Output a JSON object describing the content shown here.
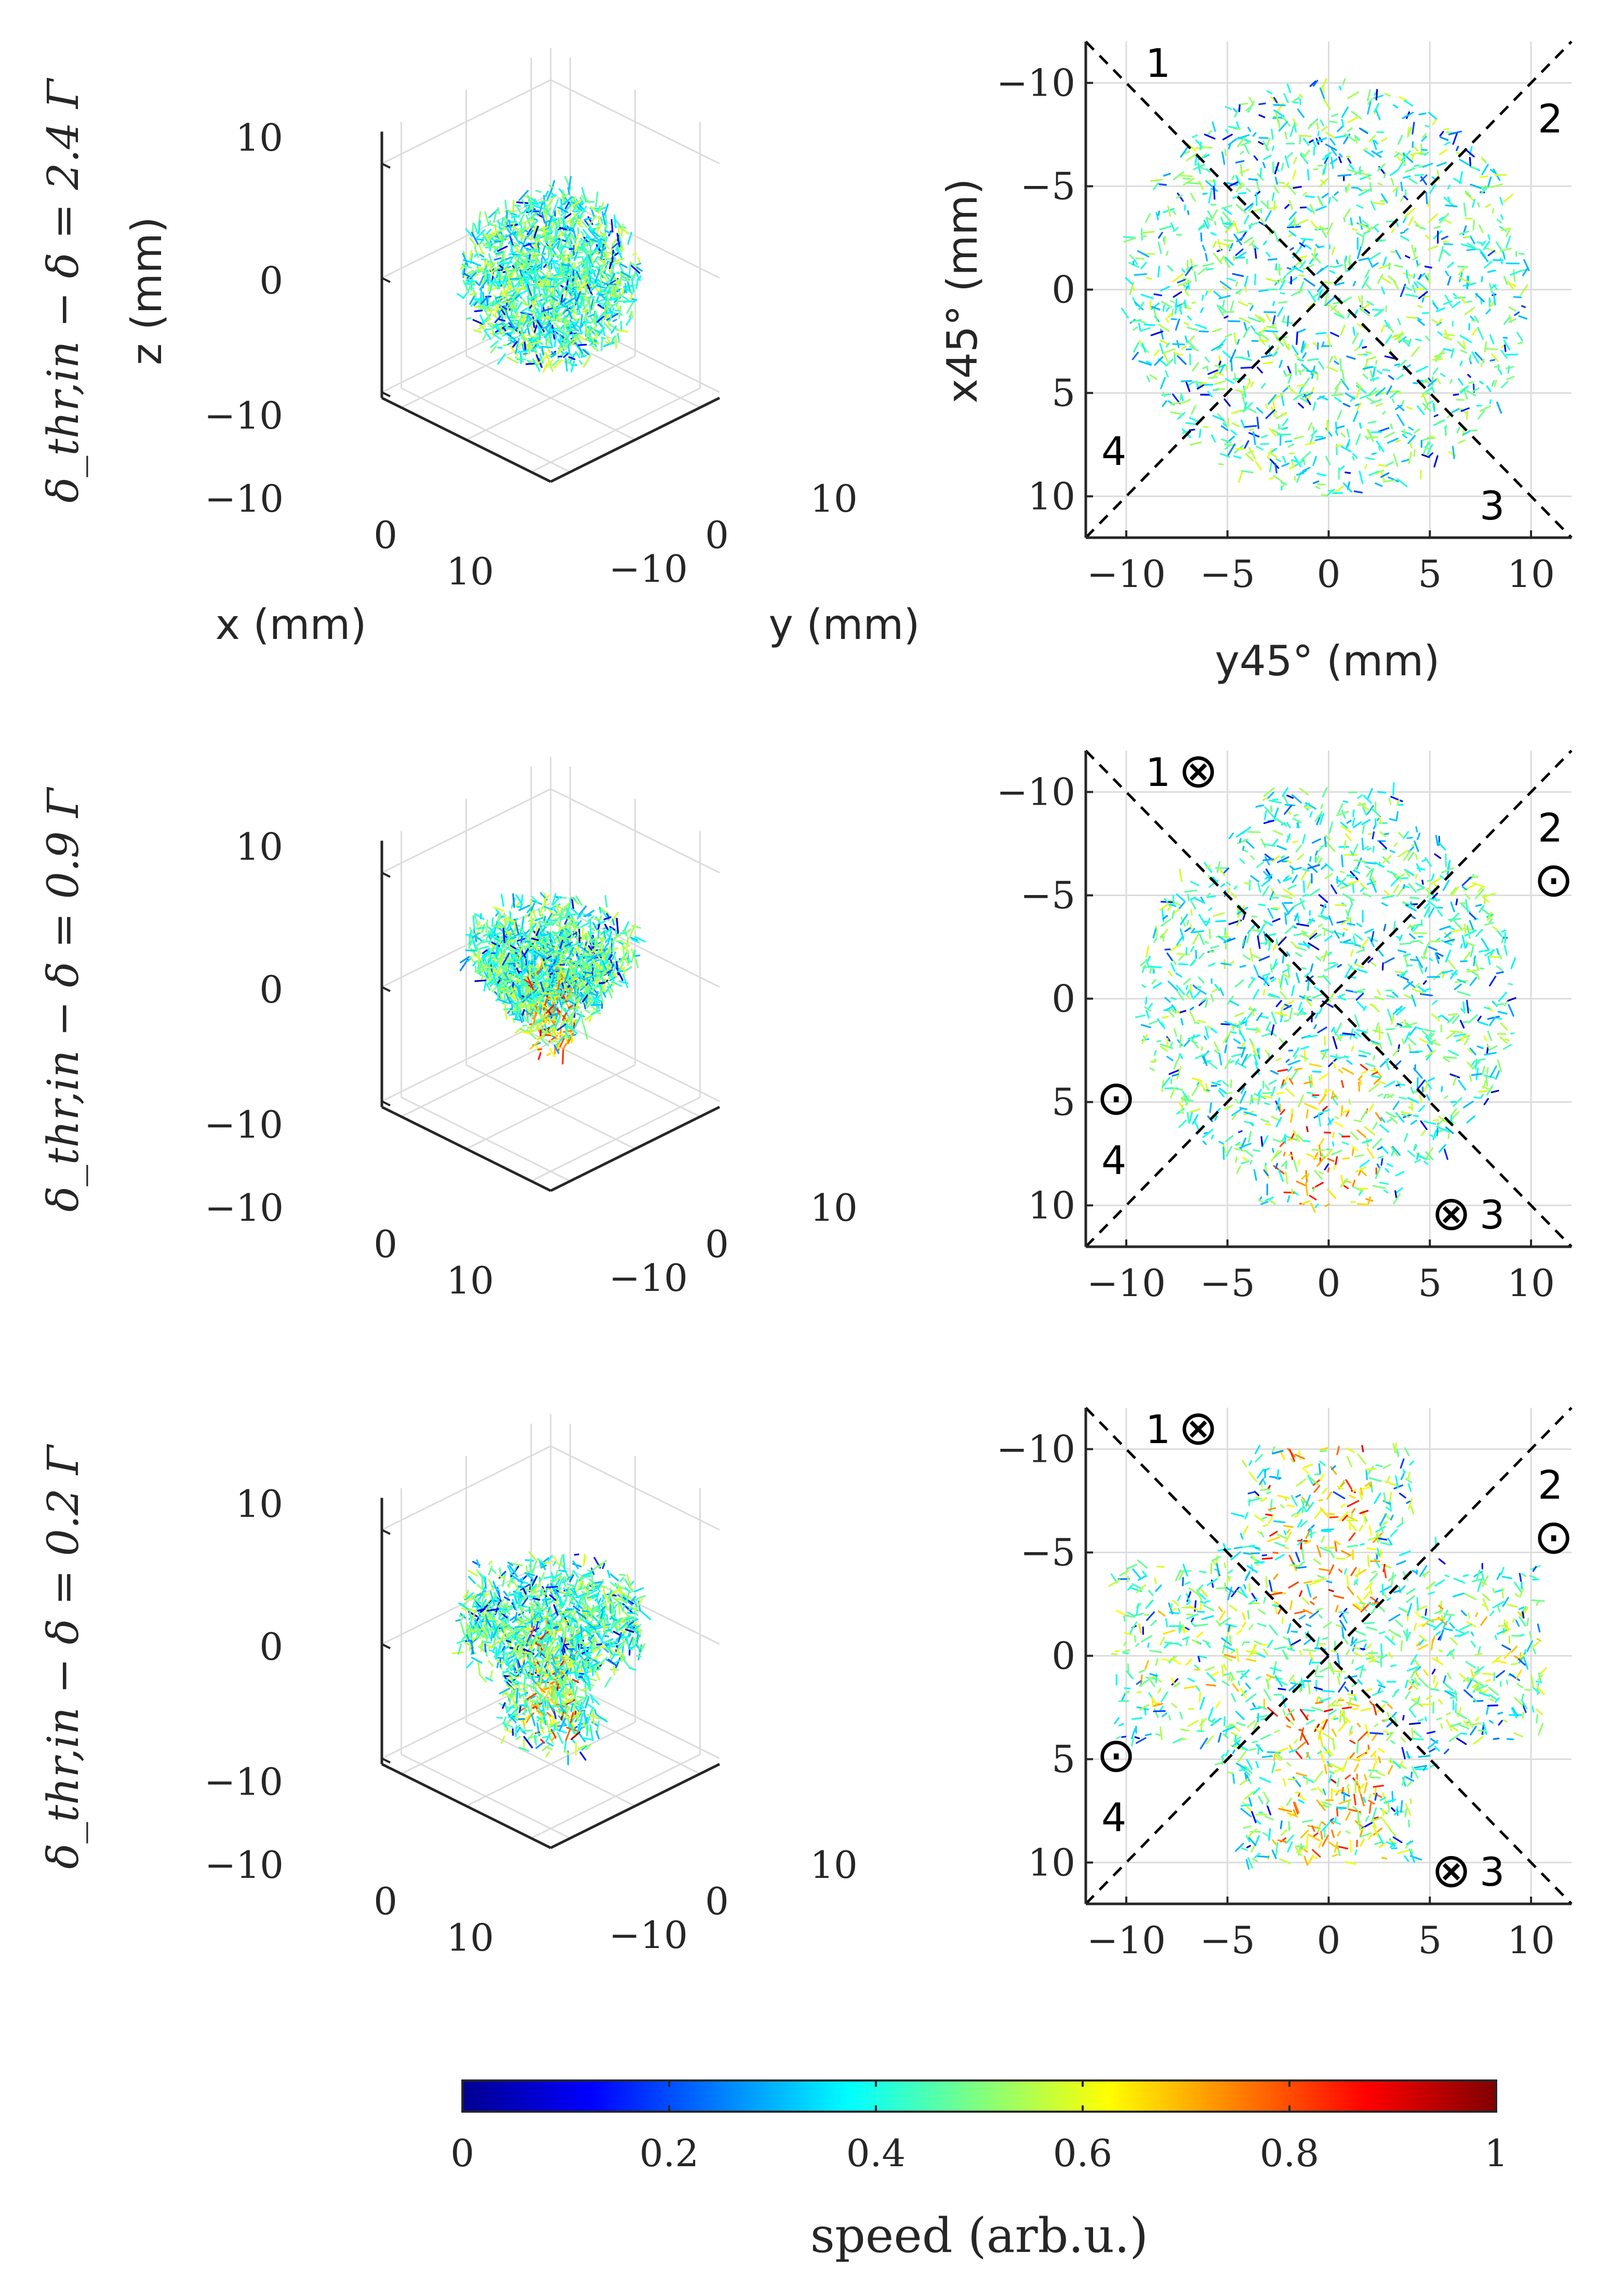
{
  "chart_data": [
    {
      "type": "scatter",
      "projection": "3d",
      "panel": "row1-left",
      "row_label": "δ_thr,in − δ = 2.4 Γ",
      "xlabel": "x (mm)",
      "ylabel": "y (mm)",
      "zlabel": "z (mm)",
      "x_ticks": [
        "−10",
        "0",
        "10"
      ],
      "y_ticks": [
        "−10",
        "0",
        "10"
      ],
      "z_ticks": [
        "10",
        "0",
        "−10"
      ],
      "xlim": [
        -13,
        13
      ],
      "ylim": [
        -13,
        13
      ],
      "zlim": [
        -12,
        12
      ],
      "shape": "ellipsoid",
      "cloud_extent_mm": 10,
      "color_by": "speed"
    },
    {
      "type": "scatter",
      "panel": "row1-right",
      "xlabel": "y45° (mm)",
      "ylabel": "x45° (mm)",
      "x_ticks": [
        -10,
        -5,
        0,
        5,
        10
      ],
      "y_ticks": [
        -10,
        -5,
        0,
        5,
        10
      ],
      "xlim": [
        -12,
        12
      ],
      "ylim": [
        -12,
        12
      ],
      "y_reversed": true,
      "shape": "disk",
      "cloud_extent_mm": 10,
      "beam_labels": [
        "1",
        "2",
        "3",
        "4"
      ],
      "beam_markers": [
        "",
        "",
        "",
        ""
      ],
      "color_by": "speed"
    },
    {
      "type": "scatter",
      "projection": "3d",
      "panel": "row2-left",
      "row_label": "δ_thr,in − δ = 0.9 Γ",
      "x_ticks": [
        "−10",
        "0",
        "10"
      ],
      "y_ticks": [
        "−10",
        "0",
        "10"
      ],
      "z_ticks": [
        "10",
        "0",
        "−10"
      ],
      "shape": "heart",
      "cloud_extent_mm": 9,
      "color_by": "speed"
    },
    {
      "type": "scatter",
      "panel": "row2-right",
      "x_ticks": [
        -10,
        -5,
        0,
        5,
        10
      ],
      "y_ticks": [
        -10,
        -5,
        0,
        5,
        10
      ],
      "xlim": [
        -12,
        12
      ],
      "ylim": [
        -12,
        12
      ],
      "y_reversed": true,
      "shape": "lobed-disk",
      "cloud_extent_mm": 10,
      "beam_labels": [
        "1",
        "2",
        "3",
        "4"
      ],
      "beam_markers": [
        "⊗",
        "⊙",
        "⊗",
        "⊙"
      ],
      "color_by": "speed"
    },
    {
      "type": "scatter",
      "projection": "3d",
      "panel": "row3-left",
      "row_label": "δ_thr,in − δ = 0.2 Γ",
      "x_ticks": [
        "−10",
        "0",
        "10"
      ],
      "y_ticks": [
        "−10",
        "0",
        "10"
      ],
      "z_ticks": [
        "10",
        "0",
        "−10"
      ],
      "shape": "trefoil",
      "cloud_extent_mm": 10,
      "color_by": "speed"
    },
    {
      "type": "scatter",
      "panel": "row3-right",
      "x_ticks": [
        -10,
        -5,
        0,
        5,
        10
      ],
      "y_ticks": [
        -10,
        -5,
        0,
        5,
        10
      ],
      "xlim": [
        -12,
        12
      ],
      "ylim": [
        -12,
        12
      ],
      "y_reversed": true,
      "shape": "cross",
      "cloud_extent_mm": 10,
      "beam_labels": [
        "1",
        "2",
        "3",
        "4"
      ],
      "beam_markers": [
        "⊗",
        "⊙",
        "⊗",
        "⊙"
      ],
      "color_by": "speed"
    }
  ],
  "colorbar": {
    "label": "speed (arb.u.)",
    "ticks": [
      "0",
      "0.2",
      "0.4",
      "0.6",
      "0.8",
      "1"
    ],
    "range": [
      0,
      1
    ],
    "colormap": "jet"
  },
  "colors": {
    "axis": "#262626",
    "grid": "#dcdcdc",
    "beam_line": "#000000"
  }
}
